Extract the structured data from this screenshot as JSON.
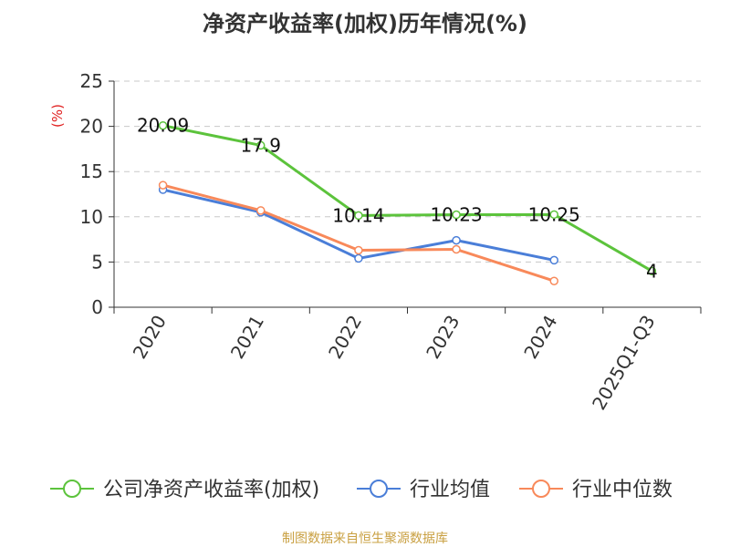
{
  "chart_data": {
    "type": "line",
    "title": "净资产收益率(加权)历年情况(%)",
    "ylabel": "(%)",
    "xlabel": "",
    "ylim": [
      0,
      25
    ],
    "yticks": [
      0,
      5,
      10,
      15,
      20,
      25
    ],
    "categories": [
      "2020",
      "2021",
      "2022",
      "2023",
      "2024",
      "2025Q1-Q3"
    ],
    "grid": true,
    "legend_position": "bottom",
    "series": [
      {
        "name": "公司净资产收益率(加权)",
        "color": "#5cc33c",
        "values": [
          20.09,
          17.9,
          10.14,
          10.23,
          10.25,
          4
        ],
        "labels": [
          "20.09",
          "17.9",
          "10.14",
          "10.23",
          "10.25",
          "4"
        ]
      },
      {
        "name": "行业均值",
        "color": "#4a7ed8",
        "values": [
          13.0,
          10.5,
          5.4,
          7.4,
          5.2,
          null
        ]
      },
      {
        "name": "行业中位数",
        "color": "#f8895a",
        "values": [
          13.5,
          10.7,
          6.3,
          6.4,
          2.9,
          null
        ]
      }
    ]
  },
  "source": "制图数据来自恒生聚源数据库"
}
